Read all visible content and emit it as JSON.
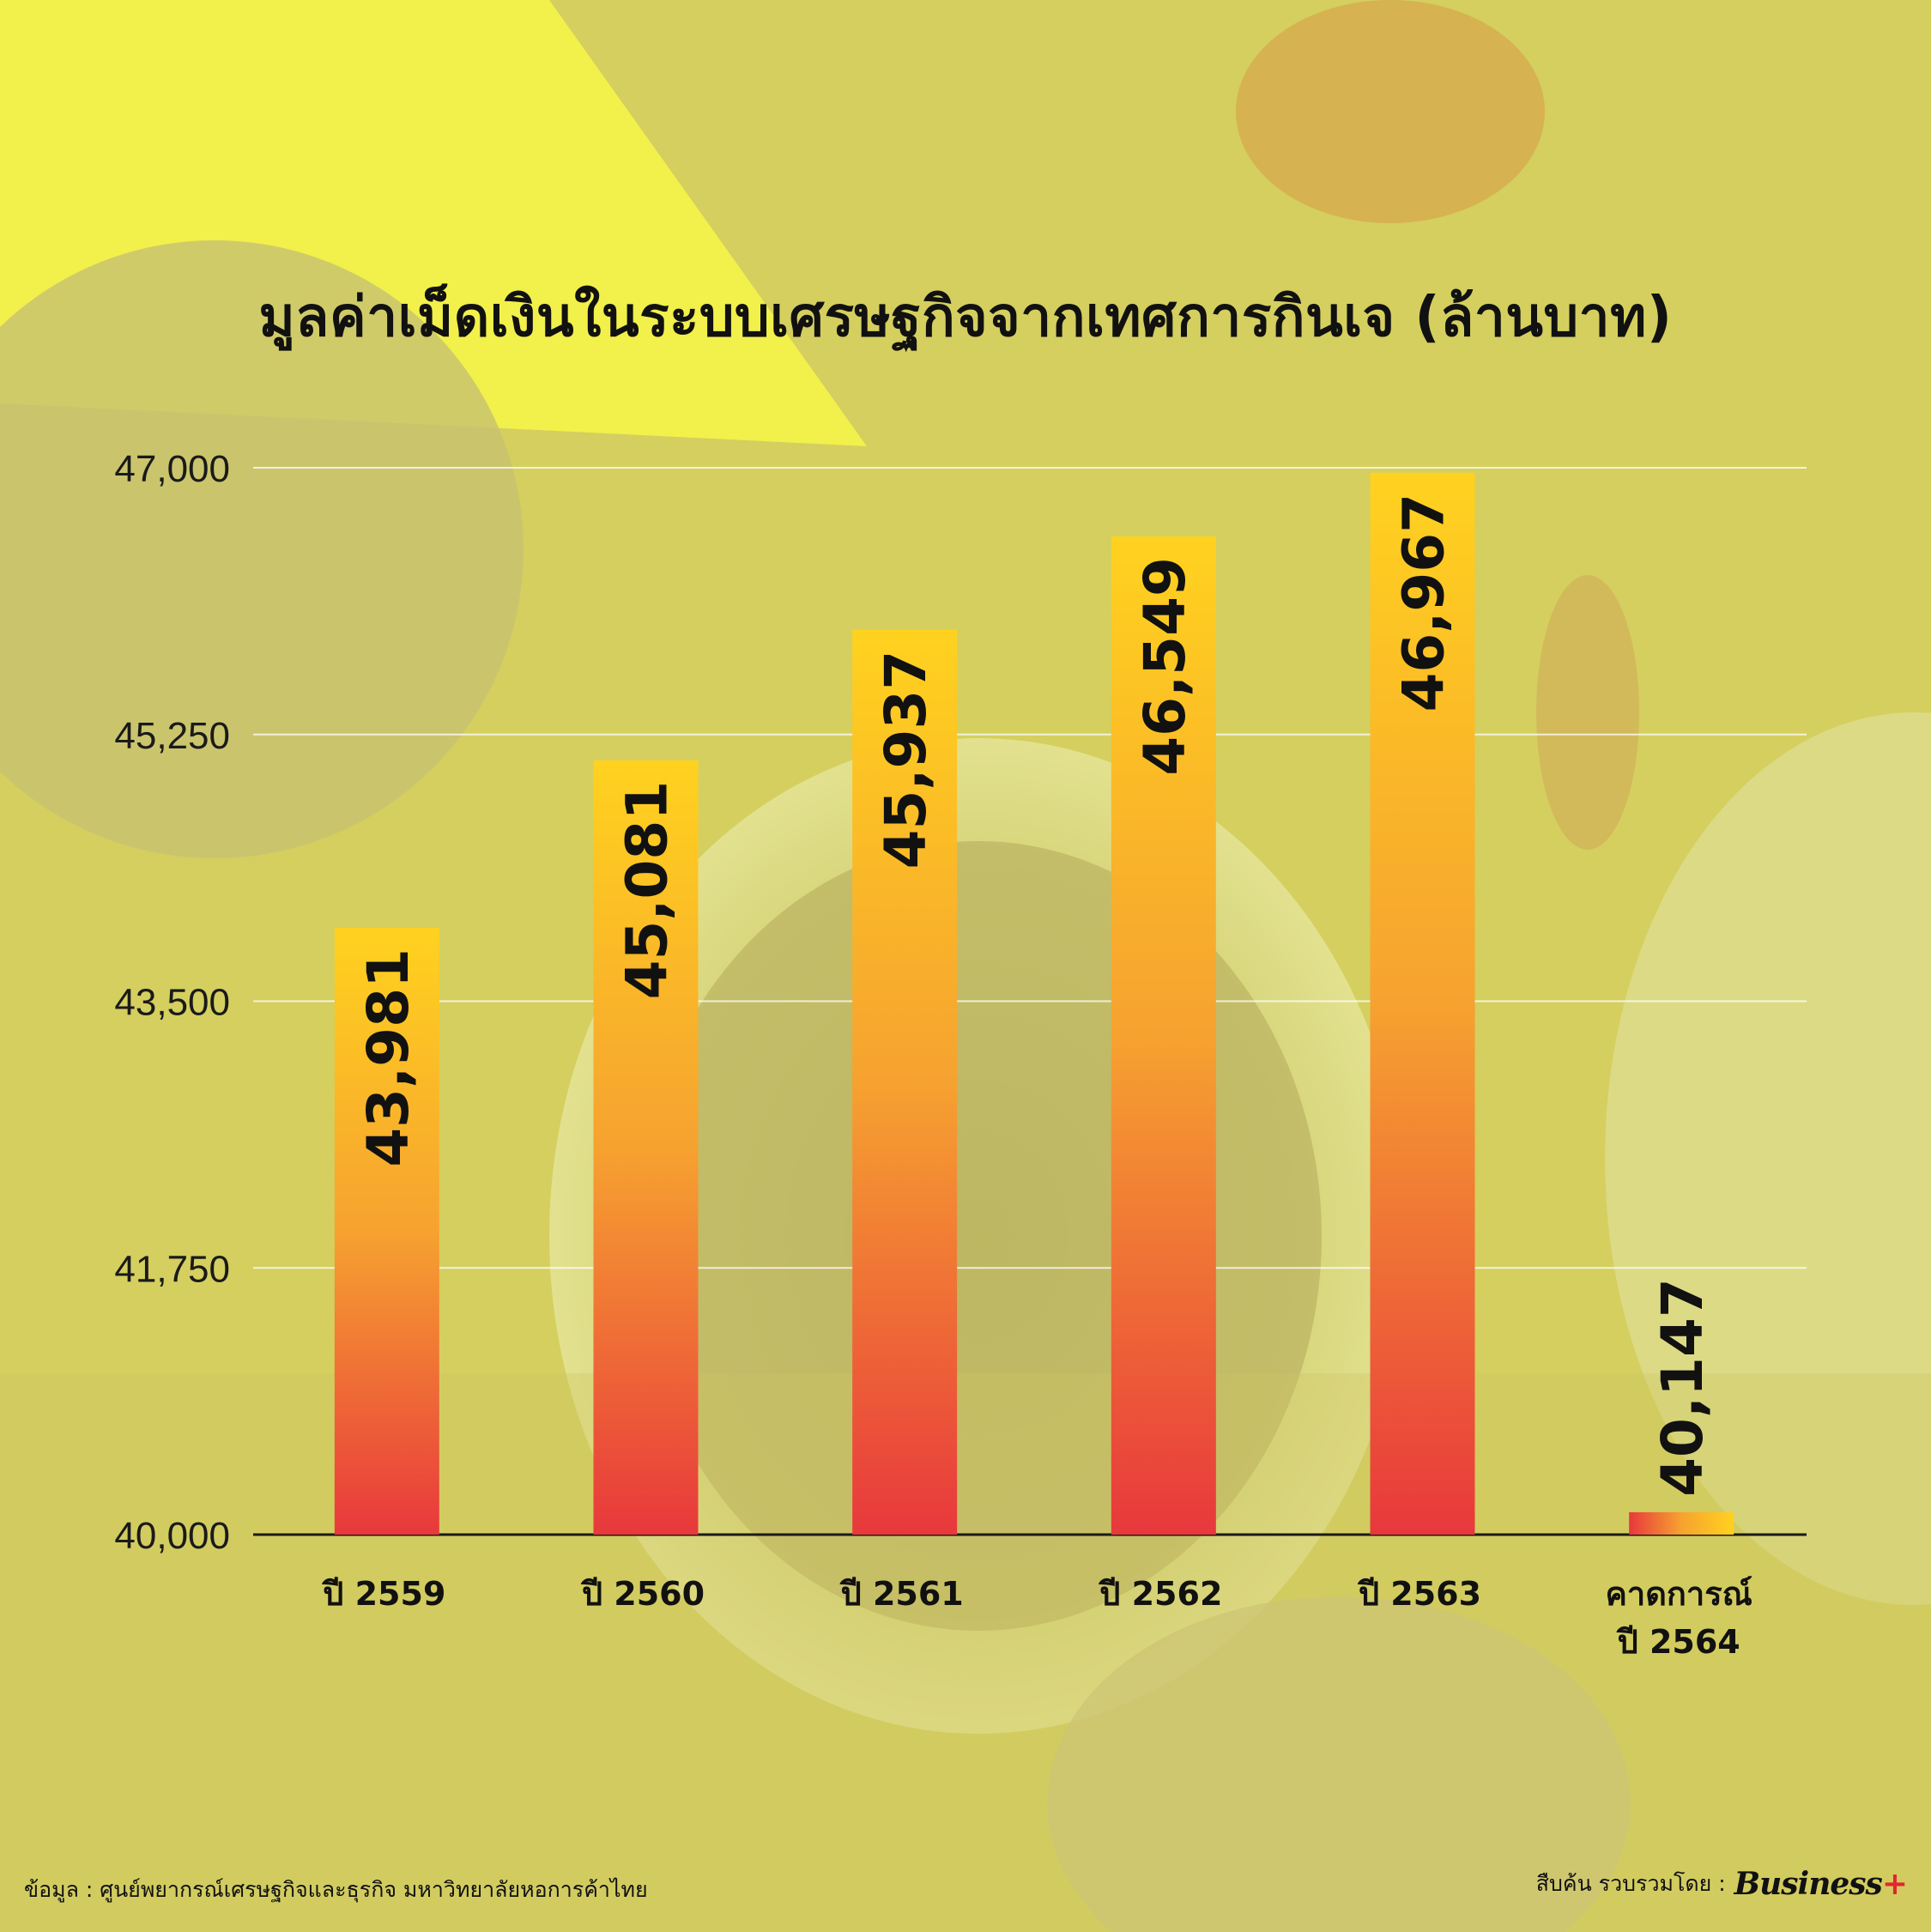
{
  "title": "มูลค่าเม็ดเงินในระบบเศรษฐกิจจากเทศการกินเจ (ล้านบาท)",
  "source": "ข้อมูล : ศูนย์พยากรณ์เศรษฐกิจและธุรกิจ มหาวิทยาลัยหอการค้าไทย",
  "credit": "สืบค้น รวบรวมโดย :",
  "logo": {
    "text": "Business",
    "plus": "+"
  },
  "colors": {
    "bar_top": "#ffd21f",
    "bar_mid": "#f6a230",
    "bar_bottom": "#e8383c",
    "grid": "#ffffff",
    "axis": "#1a1a1a"
  },
  "chart_data": {
    "type": "bar",
    "categories": [
      "ปี 2559",
      "ปี 2560",
      "ปี 2561",
      "ปี 2562",
      "ปี 2563",
      "คาดการณ์\nปี 2564"
    ],
    "values": [
      43981,
      45081,
      45937,
      46549,
      46967,
      40147
    ],
    "value_labels": [
      "43,981",
      "45,081",
      "45,937",
      "46,549",
      "46,967",
      "40,147"
    ],
    "yticks": [
      "40,000",
      "41,750",
      "43,500",
      "45,250",
      "47,000"
    ],
    "ytick_values": [
      40000,
      41750,
      43500,
      45250,
      47000
    ],
    "ylim": [
      40000,
      47000
    ],
    "grid": true,
    "xlabel": "",
    "ylabel": ""
  }
}
